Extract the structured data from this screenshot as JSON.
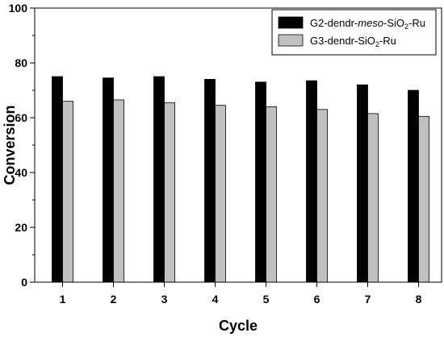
{
  "chart_data": {
    "type": "bar",
    "categories": [
      "1",
      "2",
      "3",
      "4",
      "5",
      "6",
      "7",
      "8"
    ],
    "series": [
      {
        "name": "G2-dendr-meso-SiO2-Ru",
        "values": [
          75,
          74.5,
          75,
          74,
          73,
          73.5,
          72,
          70
        ],
        "color": "#000000"
      },
      {
        "name": "G3-dendr-SiO2-Ru",
        "values": [
          66,
          66.5,
          65.5,
          64.5,
          64,
          63,
          61.5,
          60.5
        ],
        "color": "#c0c0c0"
      }
    ],
    "yticks": [
      "0",
      "20",
      "40",
      "60",
      "80",
      "100"
    ],
    "ylim": [
      0,
      100
    ],
    "xlabel": "Cycle",
    "ylabel": "Conversion",
    "legend_position": "top-right",
    "grid": false
  }
}
